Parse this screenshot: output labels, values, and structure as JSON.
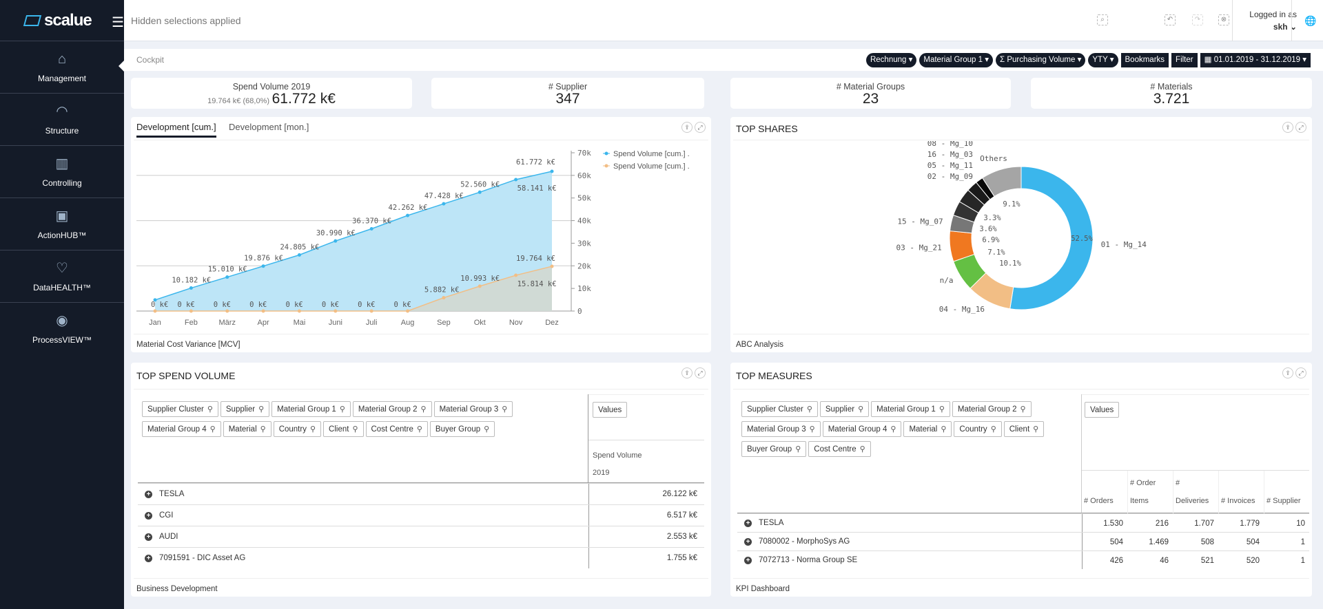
{
  "app": {
    "logo_text": "scalue",
    "hidden_selections": "Hidden selections applied",
    "logged_in_label": "Logged in as",
    "user": "skh"
  },
  "sidebar": {
    "items": [
      {
        "label": "Management",
        "icon": "home-icon",
        "active": true
      },
      {
        "label": "Structure",
        "icon": "signal-icon"
      },
      {
        "label": "Controlling",
        "icon": "bar-chart-icon"
      },
      {
        "label": "ActionHUB™",
        "icon": "briefcase-icon"
      },
      {
        "label": "DataHEALTH™",
        "icon": "heart-pulse-icon"
      },
      {
        "label": "ProcessVIEW™",
        "icon": "eye-icon"
      }
    ]
  },
  "breadcrumb": "Cockpit",
  "filters": {
    "pills": [
      "Rechnung",
      "Material Group 1",
      "Σ Purchasing Volume",
      "YTY"
    ],
    "bookmarks": "Bookmarks",
    "filter": "Filter",
    "date_range": "01.01.2019 - 31.12.2019"
  },
  "kpis": [
    {
      "label": "Spend Volume 2019",
      "sub": "19.764 k€ (68,0%)",
      "value": "61.772 k€"
    },
    {
      "label": "# Supplier",
      "value": "347"
    },
    {
      "label": "# Material Groups",
      "value": "23"
    },
    {
      "label": "# Materials",
      "value": "3.721"
    }
  ],
  "development": {
    "tabs": [
      "Development [cum.]",
      "Development [mon.]"
    ],
    "footer": "Material Cost Variance [MCV]"
  },
  "chart_data": [
    {
      "type": "area",
      "categories": [
        "Jan",
        "Feb",
        "März",
        "Apr",
        "Mai",
        "Juni",
        "Juli",
        "Aug",
        "Sep",
        "Okt",
        "Nov",
        "Dez"
      ],
      "ylim": [
        0,
        70000
      ],
      "yticks": [
        "0",
        "10k",
        "20k",
        "30k",
        "40k",
        "50k",
        "60k",
        "70k"
      ],
      "grid": true,
      "legend": "right",
      "series": [
        {
          "name": "Spend Volume [cum.] .",
          "color": "#3bb6ec",
          "fill": "#bde5f7",
          "values": [
            4900,
            10182,
            15010,
            19876,
            24805,
            30990,
            36370,
            42262,
            47428,
            52560,
            58141,
            61772
          ],
          "labels": [
            "",
            "10.182 k€",
            "15.010 k€",
            "19.876 k€",
            "24.805 k€",
            "30.990 k€",
            "36.370 k€",
            "42.262 k€",
            "47.428 k€",
            "52.560 k€",
            "58.141 k€",
            "61.772 k€"
          ]
        },
        {
          "name": "Spend Volume [cum.] .",
          "color": "#f2be85",
          "fill": "#d3d8cf",
          "values": [
            0,
            0,
            0,
            0,
            0,
            0,
            0,
            0,
            5882,
            10993,
            15814,
            19764
          ],
          "labels": [
            "0 k€",
            "0 k€",
            "0 k€",
            "0 k€",
            "0 k€",
            "0 k€",
            "0 k€",
            "0 k€",
            "5.882 k€",
            "10.993 k€",
            "15.814 k€",
            "19.764 k€"
          ]
        }
      ]
    },
    {
      "type": "pie",
      "title": "TOP SHARES",
      "slices": [
        {
          "label": "01 - Mg_14",
          "value": 52.5,
          "pct": "52.5%",
          "color": "#3bb6ec"
        },
        {
          "label": "04 - Mg_16",
          "value": 10.1,
          "pct": "10.1%",
          "color": "#f2be85"
        },
        {
          "label": "n/a",
          "value": 7.1,
          "pct": "7.1%",
          "color": "#64c043"
        },
        {
          "label": "03 - Mg_21",
          "value": 6.9,
          "pct": "6.9%",
          "color": "#f07820"
        },
        {
          "label": "15 - Mg_07",
          "value": 3.6,
          "pct": "3.6%",
          "color": "#777777"
        },
        {
          "label": "02 - Mg_09",
          "value": 3.3,
          "pct": "3.3%",
          "color": "#333333"
        },
        {
          "label": "05 - Mg_11",
          "value": 3.2,
          "pct": "",
          "color": "#262626"
        },
        {
          "label": "16 - Mg_03",
          "value": 2.5,
          "pct": "",
          "color": "#1a1a1a"
        },
        {
          "label": "08 - Mg_10",
          "value": 1.7,
          "pct": "",
          "color": "#0a0a0a"
        },
        {
          "label": "Others",
          "value": 9.1,
          "pct": "9.1%",
          "color": "#a5a5a5"
        }
      ]
    }
  ],
  "shares": {
    "title": "TOP SHARES",
    "footer": "ABC Analysis"
  },
  "spend": {
    "title": "TOP SPEND VOLUME",
    "chips": [
      "Supplier Cluster",
      "Supplier",
      "Material Group 1",
      "Material Group 2",
      "Material Group 3",
      "Material Group 4",
      "Material",
      "Country",
      "Client",
      "Cost Centre",
      "Buyer Group"
    ],
    "values_chip": "Values",
    "column": [
      "Spend Volume",
      "2019"
    ],
    "rows": [
      {
        "name": "TESLA",
        "value": "26.122 k€"
      },
      {
        "name": "CGI",
        "value": "6.517 k€"
      },
      {
        "name": "AUDI",
        "value": "2.553 k€"
      },
      {
        "name": "7091591 - DIC Asset AG",
        "value": "1.755 k€"
      }
    ],
    "footer": "Business Development"
  },
  "measures": {
    "title": "TOP MEASURES",
    "chips": [
      "Supplier Cluster",
      "Supplier",
      "Material Group 1",
      "Material Group 2",
      "Material Group 3",
      "Material Group 4",
      "Material",
      "Country",
      "Client",
      "Buyer Group",
      "Cost Centre"
    ],
    "values_chip": "Values",
    "columns": [
      [
        "# Orders"
      ],
      [
        "# Order",
        "Items"
      ],
      [
        "#",
        "Deliveries"
      ],
      [
        "# Invoices"
      ],
      [
        "# Supplier"
      ]
    ],
    "rows": [
      {
        "name": "TESLA",
        "values": [
          "1.530",
          "216",
          "1.707",
          "1.779",
          "10"
        ]
      },
      {
        "name": "7080002 - MorphoSys AG",
        "values": [
          "504",
          "1.469",
          "508",
          "504",
          "1"
        ]
      },
      {
        "name": "7072713 - Norma Group SE",
        "values": [
          "426",
          "46",
          "521",
          "520",
          "1"
        ]
      }
    ],
    "footer": "KPI Dashboard"
  }
}
